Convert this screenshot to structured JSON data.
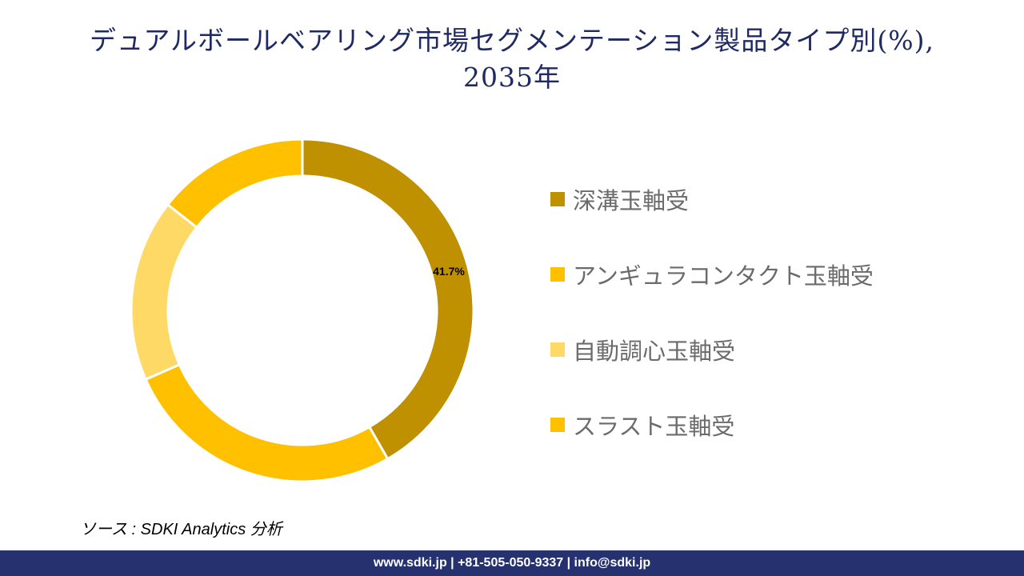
{
  "title": {
    "line1": "デュアルボールベアリング市場セグメンテーション製品タイプ別(%),",
    "line2": "2035年"
  },
  "chart_data": {
    "type": "pie",
    "variant": "donut",
    "title": "デュアルボールベアリング市場セグメンテーション製品タイプ別(%), 2035年",
    "categories": [
      "深溝玉軸受",
      "アンギュラコンタクト玉軸受",
      "自動調心玉軸受",
      "スラスト玉軸受"
    ],
    "values": [
      41.7,
      26.7,
      17.2,
      14.4
    ],
    "colors": [
      "#BF9000",
      "#FFC000",
      "#FFD966",
      "#FFC000"
    ],
    "data_labels": [
      "41.7%",
      "",
      "",
      ""
    ],
    "legend_position": "right"
  },
  "source": "ソース : SDKI Analytics 分析",
  "footer": "www.sdki.jp | +81-505-050-9337 | info@sdki.jp"
}
